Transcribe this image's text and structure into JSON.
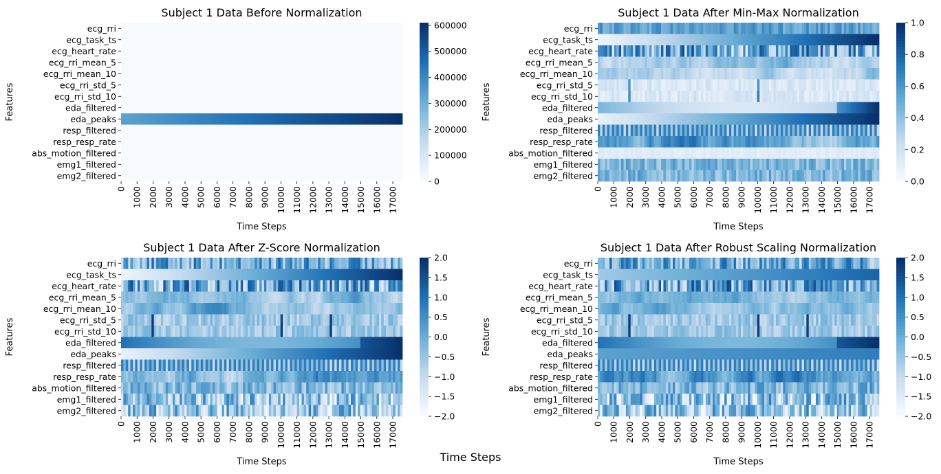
{
  "figure": {
    "supxlabel": "Time Steps"
  },
  "colors": {
    "cmap_low": "#f7fbff",
    "cmap_mid": "#6baed6",
    "cmap_high": "#08306b"
  },
  "chart_data": [
    {
      "type": "heatmap",
      "title": "Subject 1 Data Before Normalization",
      "xlabel": "Time Steps",
      "ylabel": "Features",
      "features": [
        "ecg_rri",
        "ecg_task_ts",
        "ecg_heart_rate",
        "ecg_rri_mean_5",
        "ecg_rri_mean_10",
        "ecg_rri_std_5",
        "ecg_rri_std_10",
        "eda_filtered",
        "eda_peaks",
        "resp_filtered",
        "resp_resp_rate",
        "abs_motion_filtered",
        "emg1_filtered",
        "emg2_filtered"
      ],
      "x_range": [
        0,
        17600
      ],
      "x_ticks": [
        "0",
        "1000",
        "2000",
        "3000",
        "4000",
        "5000",
        "6000",
        "7000",
        "8000",
        "9000",
        "10000",
        "11000",
        "12000",
        "13000",
        "14000",
        "15000",
        "16000",
        "17000"
      ],
      "x_tick_values": [
        0,
        1000,
        2000,
        3000,
        4000,
        5000,
        6000,
        7000,
        8000,
        9000,
        10000,
        11000,
        12000,
        13000,
        14000,
        15000,
        16000,
        17000
      ],
      "colorbar_range": [
        0,
        610000
      ],
      "colorbar_ticks": [
        "0",
        "100000",
        "200000",
        "300000",
        "400000",
        "500000",
        "600000"
      ],
      "colorbar_tick_values": [
        0,
        100000,
        200000,
        300000,
        400000,
        500000,
        600000
      ],
      "pattern": "eda_peaks row ramps 300000 → 600000; all other rows ≈ 0"
    },
    {
      "type": "heatmap",
      "title": "Subject 1 Data After Min-Max Normalization",
      "xlabel": "Time Steps",
      "ylabel": "Features",
      "features": [
        "ecg_rri",
        "ecg_task_ts",
        "ecg_heart_rate",
        "ecg_rri_mean_5",
        "ecg_rri_mean_10",
        "ecg_rri_std_5",
        "ecg_rri_std_10",
        "eda_filtered",
        "eda_peaks",
        "resp_filtered",
        "resp_resp_rate",
        "abs_motion_filtered",
        "emg1_filtered",
        "emg2_filtered"
      ],
      "x_range": [
        0,
        17600
      ],
      "x_ticks": [
        "0",
        "1000",
        "2000",
        "3000",
        "4000",
        "5000",
        "6000",
        "7000",
        "8000",
        "9000",
        "10000",
        "11000",
        "12000",
        "13000",
        "14000",
        "15000",
        "16000",
        "17000"
      ],
      "x_tick_values": [
        0,
        1000,
        2000,
        3000,
        4000,
        5000,
        6000,
        7000,
        8000,
        9000,
        10000,
        11000,
        12000,
        13000,
        14000,
        15000,
        16000,
        17000
      ],
      "colorbar_range": [
        0,
        1
      ],
      "colorbar_ticks": [
        "0.0",
        "0.2",
        "0.4",
        "0.6",
        "0.8",
        "1.0"
      ],
      "colorbar_tick_values": [
        0,
        0.2,
        0.4,
        0.6,
        0.8,
        1.0
      ]
    },
    {
      "type": "heatmap",
      "title": "Subject 1 Data After Z-Score Normalization",
      "xlabel": "Time Steps",
      "ylabel": "Features",
      "features": [
        "ecg_rri",
        "ecg_task_ts",
        "ecg_heart_rate",
        "ecg_rri_mean_5",
        "ecg_rri_mean_10",
        "ecg_rri_std_5",
        "ecg_rri_std_10",
        "eda_filtered",
        "eda_peaks",
        "resp_filtered",
        "resp_resp_rate",
        "abs_motion_filtered",
        "emg1_filtered",
        "emg2_filtered"
      ],
      "x_range": [
        0,
        17600
      ],
      "x_ticks": [
        "0",
        "1000",
        "2000",
        "3000",
        "4000",
        "5000",
        "6000",
        "7000",
        "8000",
        "9000",
        "10000",
        "11000",
        "12000",
        "13000",
        "14000",
        "15000",
        "16000",
        "17000"
      ],
      "x_tick_values": [
        0,
        1000,
        2000,
        3000,
        4000,
        5000,
        6000,
        7000,
        8000,
        9000,
        10000,
        11000,
        12000,
        13000,
        14000,
        15000,
        16000,
        17000
      ],
      "colorbar_range": [
        -2,
        2
      ],
      "colorbar_ticks": [
        "−2.0",
        "−1.5",
        "−1.0",
        "−0.5",
        "0.0",
        "0.5",
        "1.0",
        "1.5",
        "2.0"
      ],
      "colorbar_tick_values": [
        -2,
        -1.5,
        -1,
        -0.5,
        0,
        0.5,
        1,
        1.5,
        2
      ]
    },
    {
      "type": "heatmap",
      "title": "Subject 1 Data After Robust Scaling Normalization",
      "xlabel": "Time Steps",
      "ylabel": "Features",
      "features": [
        "ecg_rri",
        "ecg_task_ts",
        "ecg_heart_rate",
        "ecg_rri_mean_5",
        "ecg_rri_mean_10",
        "ecg_rri_std_5",
        "ecg_rri_std_10",
        "eda_filtered",
        "eda_peaks",
        "resp_filtered",
        "resp_resp_rate",
        "abs_motion_filtered",
        "emg1_filtered",
        "emg2_filtered"
      ],
      "x_range": [
        0,
        17600
      ],
      "x_ticks": [
        "0",
        "1000",
        "2000",
        "3000",
        "4000",
        "5000",
        "6000",
        "7000",
        "8000",
        "9000",
        "10000",
        "11000",
        "12000",
        "13000",
        "14000",
        "15000",
        "16000",
        "17000"
      ],
      "x_tick_values": [
        0,
        1000,
        2000,
        3000,
        4000,
        5000,
        6000,
        7000,
        8000,
        9000,
        10000,
        11000,
        12000,
        13000,
        14000,
        15000,
        16000,
        17000
      ],
      "colorbar_range": [
        -2,
        2
      ],
      "colorbar_ticks": [
        "−2.0",
        "−1.5",
        "−1.0",
        "−0.5",
        "0.0",
        "0.5",
        "1.0",
        "1.5",
        "2.0"
      ],
      "colorbar_tick_values": [
        -2,
        -1.5,
        -1,
        -0.5,
        0,
        0.5,
        1,
        1.5,
        2
      ]
    }
  ]
}
